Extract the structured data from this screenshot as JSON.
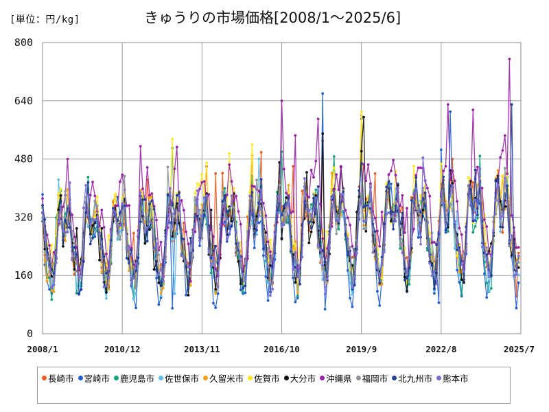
{
  "header": {
    "unit_label": "[単位：円/kg]",
    "title": "きゅうりの市場価格[2008/1～2025/6]"
  },
  "chart_data": {
    "type": "line",
    "title": "きゅうりの市場価格[2008/1～2025/6]",
    "unit": "円/kg",
    "xlabel": "",
    "ylabel": "",
    "ylim": [
      0,
      800
    ],
    "yticks": [
      0,
      160,
      320,
      480,
      640,
      800
    ],
    "xticks": [
      "2008/1",
      "2010/12",
      "2013/11",
      "2016/10",
      "2019/9",
      "2022/8",
      "2025/7"
    ],
    "grid": true,
    "legend_position": "bottom",
    "series": [
      {
        "name": "長崎市",
        "color": "#f05a1e",
        "yearly_pattern": [
          330,
          240,
          205,
          185,
          150,
          165,
          235,
          330,
          335,
          280,
          290,
          320
        ],
        "points": [
          {
            "x": "2010/12",
            "y": 290
          },
          {
            "x": "2014/5",
            "y": 440
          },
          {
            "x": "2017/3",
            "y": 460
          },
          {
            "x": "2018/4",
            "y": 530
          },
          {
            "x": "2020/3",
            "y": 440
          },
          {
            "x": "2023/1",
            "y": 480
          }
        ]
      },
      {
        "name": "宮崎市",
        "color": "#1f5fd6",
        "yearly_pattern": [
          310,
          225,
          180,
          120,
          95,
          140,
          230,
          320,
          330,
          270,
          280,
          300
        ],
        "points": [
          {
            "x": "2012/10",
            "y": 70
          },
          {
            "x": "2018/4",
            "y": 660
          },
          {
            "x": "2019/9",
            "y": 590
          },
          {
            "x": "2022/7",
            "y": 85
          },
          {
            "x": "2022/12",
            "y": 610
          }
        ]
      },
      {
        "name": "鹿児島市",
        "color": "#12a37a",
        "yearly_pattern": [
          320,
          235,
          195,
          150,
          120,
          150,
          235,
          330,
          340,
          280,
          285,
          315
        ],
        "points": [
          {
            "x": "2012/10",
            "y": 510
          },
          {
            "x": "2016/10",
            "y": 500
          }
        ]
      },
      {
        "name": "佐世保市",
        "color": "#5bc0e8",
        "yearly_pattern": [
          325,
          240,
          200,
          165,
          130,
          150,
          232,
          325,
          335,
          278,
          285,
          318
        ],
        "points": [
          {
            "x": "2012/11",
            "y": 110
          }
        ]
      },
      {
        "name": "久留米市",
        "color": "#f2a218",
        "yearly_pattern": [
          335,
          245,
          205,
          180,
          140,
          160,
          240,
          340,
          350,
          290,
          295,
          325
        ],
        "points": [
          {
            "x": "2015/9",
            "y": 490
          },
          {
            "x": "2019/9",
            "y": 600
          }
        ]
      },
      {
        "name": "佐賀市",
        "color": "#ffe81a",
        "yearly_pattern": [
          345,
          250,
          215,
          195,
          160,
          175,
          250,
          350,
          360,
          300,
          305,
          335
        ],
        "points": [
          {
            "x": "2012/10",
            "y": 535
          },
          {
            "x": "2014/11",
            "y": 495
          },
          {
            "x": "2015/9",
            "y": 520
          },
          {
            "x": "2019/9",
            "y": 610
          }
        ]
      },
      {
        "name": "大分市",
        "color": "#111111",
        "yearly_pattern": [
          325,
          240,
          200,
          170,
          140,
          160,
          235,
          330,
          340,
          282,
          288,
          318
        ],
        "points": [
          {
            "x": "2018/4",
            "y": 550
          },
          {
            "x": "2019/10",
            "y": 595
          }
        ]
      },
      {
        "name": "沖縄県",
        "color": "#9b22a8",
        "yearly_pattern": [
          360,
          330,
          300,
          250,
          200,
          190,
          240,
          300,
          360,
          380,
          400,
          390
        ],
        "points": [
          {
            "x": "2008/12",
            "y": 480
          },
          {
            "x": "2011/8",
            "y": 515
          },
          {
            "x": "2016/10",
            "y": 640
          },
          {
            "x": "2017/4",
            "y": 545
          },
          {
            "x": "2018/2",
            "y": 590
          },
          {
            "x": "2022/11",
            "y": 630
          },
          {
            "x": "2023/10",
            "y": 615
          },
          {
            "x": "2025/2",
            "y": 755
          }
        ]
      },
      {
        "name": "福岡市",
        "color": "#8c949c",
        "yearly_pattern": [
          330,
          242,
          205,
          178,
          145,
          162,
          238,
          332,
          342,
          284,
          290,
          320
        ],
        "points": [
          {
            "x": "2024/6",
            "y": 170
          }
        ]
      },
      {
        "name": "北九州市",
        "color": "#1e3f9e",
        "yearly_pattern": [
          332,
          244,
          206,
          175,
          142,
          160,
          238,
          334,
          345,
          286,
          291,
          321
        ],
        "points": [
          {
            "x": "2023/11",
            "y": 450
          },
          {
            "x": "2025/3",
            "y": 630
          }
        ]
      },
      {
        "name": "熊本市",
        "color": "#7b6fd6",
        "yearly_pattern": [
          322,
          236,
          198,
          168,
          135,
          155,
          232,
          326,
          336,
          279,
          286,
          316
        ],
        "points": []
      }
    ]
  }
}
